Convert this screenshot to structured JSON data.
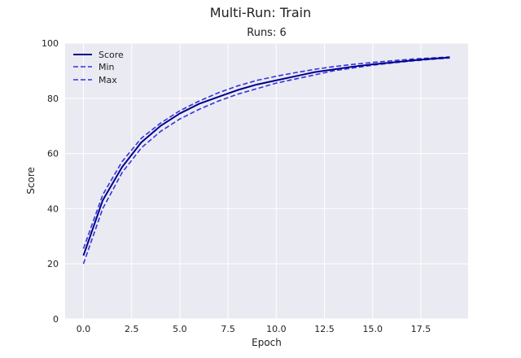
{
  "chart_data": {
    "type": "line",
    "suptitle": "Multi-Run: Train",
    "title": "Runs: 6",
    "xlabel": "Epoch",
    "ylabel": "Score",
    "xlim": [
      -0.95,
      19.95
    ],
    "ylim": [
      0,
      100
    ],
    "xticks": [
      0.0,
      2.5,
      5.0,
      7.5,
      10.0,
      12.5,
      15.0,
      17.5
    ],
    "xtick_labels": [
      "0.0",
      "2.5",
      "5.0",
      "7.5",
      "10.0",
      "12.5",
      "15.0",
      "17.5"
    ],
    "yticks": [
      0,
      20,
      40,
      60,
      80,
      100
    ],
    "ytick_labels": [
      "0",
      "20",
      "40",
      "60",
      "80",
      "100"
    ],
    "grid": true,
    "legend_position": "upper-left",
    "x": [
      0,
      1,
      2,
      3,
      4,
      5,
      6,
      7,
      8,
      9,
      10,
      11,
      12,
      13,
      14,
      15,
      16,
      17,
      18,
      19
    ],
    "series": [
      {
        "name": "Score",
        "style": "solid",
        "color": "#00008b",
        "values": [
          23,
          43,
          55,
          64,
          70,
          74.5,
          78,
          80.5,
          83,
          85,
          86.5,
          88,
          89.5,
          90.5,
          91.5,
          92.3,
          93,
          93.7,
          94.3,
          94.8
        ]
      },
      {
        "name": "Min",
        "style": "dashed",
        "color": "#3333dd",
        "values": [
          20,
          40,
          53,
          62,
          68,
          72.5,
          76,
          79,
          81.5,
          83.5,
          85.5,
          87,
          88.5,
          90,
          91,
          92,
          92.8,
          93.5,
          94.1,
          94.6
        ]
      },
      {
        "name": "Max",
        "style": "dashed",
        "color": "#3333dd",
        "values": [
          25.5,
          45,
          57,
          65.5,
          71,
          75.5,
          79,
          82,
          84.5,
          86.5,
          88,
          89.3,
          90.5,
          91.5,
          92.3,
          93,
          93.6,
          94.2,
          94.6,
          95
        ]
      }
    ]
  }
}
